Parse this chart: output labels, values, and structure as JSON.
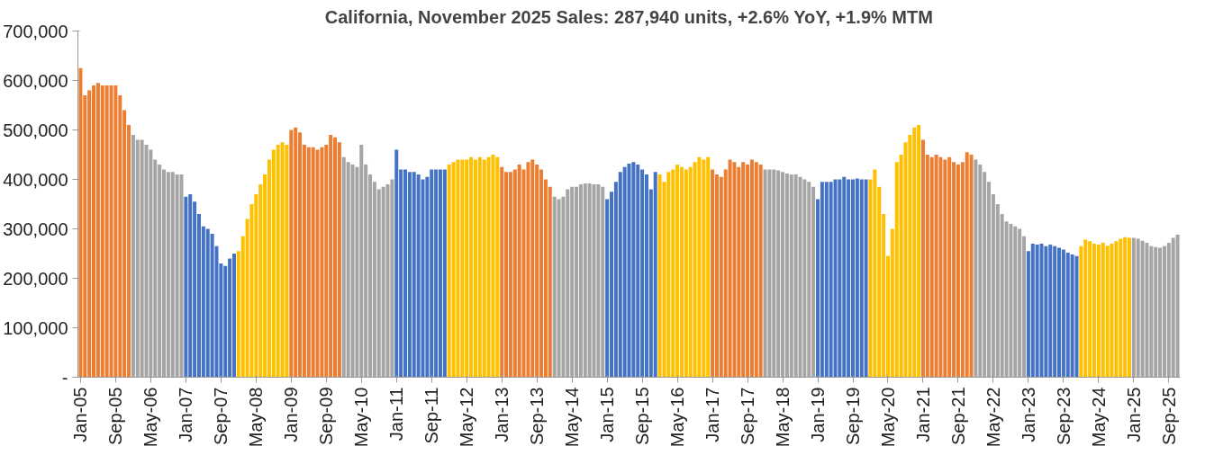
{
  "chart_data": {
    "type": "bar",
    "title": "California, November 2025 Sales: 287,940 units, +2.6% YoY, +1.9% MTM",
    "categories": [
      "Jan-05",
      null,
      null,
      null,
      null,
      null,
      null,
      null,
      "Sep-05",
      null,
      null,
      null,
      null,
      null,
      null,
      null,
      "May-06",
      null,
      null,
      null,
      null,
      null,
      null,
      null,
      "Jan-07",
      null,
      null,
      null,
      null,
      null,
      null,
      null,
      "Sep-07",
      null,
      null,
      null,
      null,
      null,
      null,
      null,
      "May-08",
      null,
      null,
      null,
      null,
      null,
      null,
      null,
      "Jan-09",
      null,
      null,
      null,
      null,
      null,
      null,
      null,
      "Sep-09",
      null,
      null,
      null,
      null,
      null,
      null,
      null,
      "May-10",
      null,
      null,
      null,
      null,
      null,
      null,
      null,
      "Jan-11",
      null,
      null,
      null,
      null,
      null,
      null,
      null,
      "Sep-11",
      null,
      null,
      null,
      null,
      null,
      null,
      null,
      "May-12",
      null,
      null,
      null,
      null,
      null,
      null,
      null,
      "Jan-13",
      null,
      null,
      null,
      null,
      null,
      null,
      null,
      "Sep-13",
      null,
      null,
      null,
      null,
      null,
      null,
      null,
      "May-14",
      null,
      null,
      null,
      null,
      null,
      null,
      null,
      "Jan-15",
      null,
      null,
      null,
      null,
      null,
      null,
      null,
      "Sep-15",
      null,
      null,
      null,
      null,
      null,
      null,
      null,
      "May-16",
      null,
      null,
      null,
      null,
      null,
      null,
      null,
      "Jan-17",
      null,
      null,
      null,
      null,
      null,
      null,
      null,
      "Sep-17",
      null,
      null,
      null,
      null,
      null,
      null,
      null,
      "May-18",
      null,
      null,
      null,
      null,
      null,
      null,
      null,
      "Jan-19",
      null,
      null,
      null,
      null,
      null,
      null,
      null,
      "Sep-19",
      null,
      null,
      null,
      null,
      null,
      null,
      null,
      "May-20",
      null,
      null,
      null,
      null,
      null,
      null,
      null,
      "Jan-21",
      null,
      null,
      null,
      null,
      null,
      null,
      null,
      "Sep-21",
      null,
      null,
      null,
      null,
      null,
      null,
      null,
      "May-22",
      null,
      null,
      null,
      null,
      null,
      null,
      null,
      "Jan-23",
      null,
      null,
      null,
      null,
      null,
      null,
      null,
      "Sep-23",
      null,
      null,
      null,
      null,
      null,
      null,
      null,
      "May-24",
      null,
      null,
      null,
      null,
      null,
      null,
      null,
      "Jan-25",
      null,
      null,
      null,
      null,
      null,
      null,
      null,
      "Sep-25",
      null,
      null
    ],
    "values": [
      625000,
      570000,
      580000,
      590000,
      595000,
      590000,
      590000,
      590000,
      590000,
      570000,
      540000,
      510000,
      490000,
      480000,
      480000,
      470000,
      460000,
      440000,
      430000,
      420000,
      415000,
      415000,
      410000,
      410000,
      365000,
      370000,
      355000,
      330000,
      305000,
      300000,
      290000,
      265000,
      230000,
      225000,
      240000,
      250000,
      255000,
      285000,
      320000,
      350000,
      370000,
      390000,
      410000,
      440000,
      460000,
      470000,
      475000,
      470000,
      500000,
      505000,
      495000,
      470000,
      465000,
      465000,
      460000,
      465000,
      470000,
      490000,
      485000,
      475000,
      445000,
      435000,
      430000,
      425000,
      470000,
      430000,
      410000,
      395000,
      380000,
      385000,
      390000,
      400000,
      460000,
      420000,
      420000,
      415000,
      415000,
      410000,
      400000,
      405000,
      420000,
      420000,
      420000,
      420000,
      430000,
      435000,
      440000,
      440000,
      440000,
      445000,
      440000,
      445000,
      440000,
      445000,
      450000,
      445000,
      425000,
      415000,
      415000,
      420000,
      430000,
      420000,
      435000,
      440000,
      430000,
      420000,
      400000,
      385000,
      365000,
      360000,
      365000,
      380000,
      385000,
      385000,
      390000,
      392000,
      392000,
      390000,
      390000,
      385000,
      360000,
      375000,
      395000,
      415000,
      425000,
      432000,
      435000,
      430000,
      420000,
      410000,
      380000,
      415000,
      410000,
      395000,
      415000,
      420000,
      430000,
      425000,
      420000,
      425000,
      435000,
      445000,
      440000,
      445000,
      420000,
      410000,
      405000,
      420000,
      440000,
      435000,
      425000,
      435000,
      430000,
      440000,
      435000,
      430000,
      420000,
      420000,
      420000,
      418000,
      415000,
      412000,
      410000,
      410000,
      405000,
      400000,
      395000,
      385000,
      360000,
      395000,
      395000,
      395000,
      400000,
      400000,
      405000,
      400000,
      400000,
      402000,
      400000,
      400000,
      400000,
      420000,
      385000,
      330000,
      245000,
      300000,
      435000,
      450000,
      475000,
      490000,
      505000,
      510000,
      480000,
      450000,
      445000,
      450000,
      445000,
      440000,
      445000,
      435000,
      430000,
      435000,
      455000,
      450000,
      440000,
      430000,
      415000,
      395000,
      370000,
      350000,
      330000,
      315000,
      310000,
      305000,
      300000,
      285000,
      255000,
      270000,
      268000,
      270000,
      265000,
      268000,
      265000,
      262000,
      258000,
      252000,
      248000,
      245000,
      265000,
      278000,
      275000,
      270000,
      268000,
      272000,
      266000,
      270000,
      275000,
      280000,
      283000,
      282000,
      282000,
      280000,
      276000,
      272000,
      265000,
      263000,
      262000,
      265000,
      272000,
      282000,
      288000
    ],
    "colors": [
      "#ed7d31",
      "#ed7d31",
      "#ed7d31",
      "#ed7d31",
      "#ed7d31",
      "#ed7d31",
      "#ed7d31",
      "#ed7d31",
      "#ed7d31",
      "#ed7d31",
      "#ed7d31",
      "#ed7d31",
      "#a5a5a5",
      "#a5a5a5",
      "#a5a5a5",
      "#a5a5a5",
      "#a5a5a5",
      "#a5a5a5",
      "#a5a5a5",
      "#a5a5a5",
      "#a5a5a5",
      "#a5a5a5",
      "#a5a5a5",
      "#a5a5a5",
      "#4472c4",
      "#4472c4",
      "#4472c4",
      "#4472c4",
      "#4472c4",
      "#4472c4",
      "#4472c4",
      "#4472c4",
      "#4472c4",
      "#4472c4",
      "#4472c4",
      "#4472c4",
      "#ffc000",
      "#ffc000",
      "#ffc000",
      "#ffc000",
      "#ffc000",
      "#ffc000",
      "#ffc000",
      "#ffc000",
      "#ffc000",
      "#ffc000",
      "#ffc000",
      "#ffc000",
      "#ed7d31",
      "#ed7d31",
      "#ed7d31",
      "#ed7d31",
      "#ed7d31",
      "#ed7d31",
      "#ed7d31",
      "#ed7d31",
      "#ed7d31",
      "#ed7d31",
      "#ed7d31",
      "#ed7d31",
      "#a5a5a5",
      "#a5a5a5",
      "#a5a5a5",
      "#a5a5a5",
      "#a5a5a5",
      "#a5a5a5",
      "#a5a5a5",
      "#a5a5a5",
      "#a5a5a5",
      "#a5a5a5",
      "#a5a5a5",
      "#a5a5a5",
      "#4472c4",
      "#4472c4",
      "#4472c4",
      "#4472c4",
      "#4472c4",
      "#4472c4",
      "#4472c4",
      "#4472c4",
      "#4472c4",
      "#4472c4",
      "#4472c4",
      "#4472c4",
      "#ffc000",
      "#ffc000",
      "#ffc000",
      "#ffc000",
      "#ffc000",
      "#ffc000",
      "#ffc000",
      "#ffc000",
      "#ffc000",
      "#ffc000",
      "#ffc000",
      "#ffc000",
      "#ed7d31",
      "#ed7d31",
      "#ed7d31",
      "#ed7d31",
      "#ed7d31",
      "#ed7d31",
      "#ed7d31",
      "#ed7d31",
      "#ed7d31",
      "#ed7d31",
      "#ed7d31",
      "#ed7d31",
      "#a5a5a5",
      "#a5a5a5",
      "#a5a5a5",
      "#a5a5a5",
      "#a5a5a5",
      "#a5a5a5",
      "#a5a5a5",
      "#a5a5a5",
      "#a5a5a5",
      "#a5a5a5",
      "#a5a5a5",
      "#a5a5a5",
      "#4472c4",
      "#4472c4",
      "#4472c4",
      "#4472c4",
      "#4472c4",
      "#4472c4",
      "#4472c4",
      "#4472c4",
      "#4472c4",
      "#4472c4",
      "#4472c4",
      "#4472c4",
      "#ffc000",
      "#ffc000",
      "#ffc000",
      "#ffc000",
      "#ffc000",
      "#ffc000",
      "#ffc000",
      "#ffc000",
      "#ffc000",
      "#ffc000",
      "#ffc000",
      "#ffc000",
      "#ed7d31",
      "#ed7d31",
      "#ed7d31",
      "#ed7d31",
      "#ed7d31",
      "#ed7d31",
      "#ed7d31",
      "#ed7d31",
      "#ed7d31",
      "#ed7d31",
      "#ed7d31",
      "#ed7d31",
      "#a5a5a5",
      "#a5a5a5",
      "#a5a5a5",
      "#a5a5a5",
      "#a5a5a5",
      "#a5a5a5",
      "#a5a5a5",
      "#a5a5a5",
      "#a5a5a5",
      "#a5a5a5",
      "#a5a5a5",
      "#a5a5a5",
      "#4472c4",
      "#4472c4",
      "#4472c4",
      "#4472c4",
      "#4472c4",
      "#4472c4",
      "#4472c4",
      "#4472c4",
      "#4472c4",
      "#4472c4",
      "#4472c4",
      "#4472c4",
      "#ffc000",
      "#ffc000",
      "#ffc000",
      "#ffc000",
      "#ffc000",
      "#ffc000",
      "#ffc000",
      "#ffc000",
      "#ffc000",
      "#ffc000",
      "#ffc000",
      "#ffc000",
      "#ed7d31",
      "#ed7d31",
      "#ed7d31",
      "#ed7d31",
      "#ed7d31",
      "#ed7d31",
      "#ed7d31",
      "#ed7d31",
      "#ed7d31",
      "#ed7d31",
      "#ed7d31",
      "#ed7d31",
      "#a5a5a5",
      "#a5a5a5",
      "#a5a5a5",
      "#a5a5a5",
      "#a5a5a5",
      "#a5a5a5",
      "#a5a5a5",
      "#a5a5a5",
      "#a5a5a5",
      "#a5a5a5",
      "#a5a5a5",
      "#a5a5a5",
      "#4472c4",
      "#4472c4",
      "#4472c4",
      "#4472c4",
      "#4472c4",
      "#4472c4",
      "#4472c4",
      "#4472c4",
      "#4472c4",
      "#4472c4",
      "#4472c4",
      "#4472c4",
      "#ffc000",
      "#ffc000",
      "#ffc000",
      "#ffc000",
      "#ffc000",
      "#ffc000",
      "#ffc000",
      "#ffc000",
      "#ffc000",
      "#ffc000",
      "#ffc000",
      "#ffc000",
      "#a5a5a5",
      "#a5a5a5",
      "#a5a5a5",
      "#a5a5a5",
      "#a5a5a5",
      "#a5a5a5",
      "#a5a5a5",
      "#a5a5a5",
      "#a5a5a5",
      "#a5a5a5",
      "#a5a5a5"
    ],
    "ylim": [
      0,
      700000
    ],
    "yticks": [
      {
        "value": 0,
        "label": "-"
      },
      {
        "value": 100000,
        "label": "100,000"
      },
      {
        "value": 200000,
        "label": "200,000"
      },
      {
        "value": 300000,
        "label": "300,000"
      },
      {
        "value": 400000,
        "label": "400,000"
      },
      {
        "value": 500000,
        "label": "500,000"
      },
      {
        "value": 600000,
        "label": "600,000"
      },
      {
        "value": 700000,
        "label": "700,000"
      }
    ],
    "grid": false
  }
}
